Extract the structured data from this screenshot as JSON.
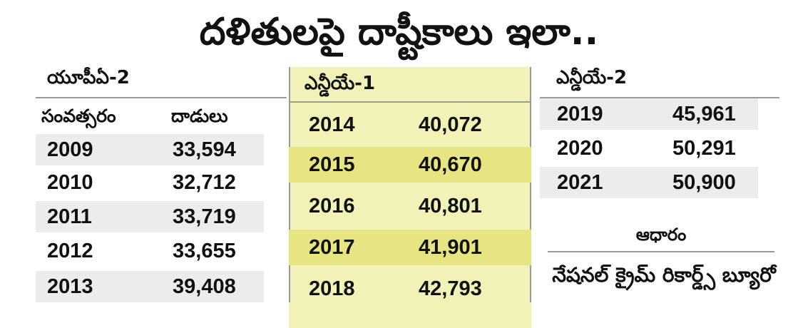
{
  "title": "దళితులపై దాష్టీకాలు ఇలా..",
  "upa2": {
    "label": "యూపీఏ-2",
    "header_year": "సంవత్సరం",
    "header_count": "దాడులు",
    "rows": [
      {
        "year": "2009",
        "count": "33,594"
      },
      {
        "year": "2010",
        "count": "32,712"
      },
      {
        "year": "2011",
        "count": "33,719"
      },
      {
        "year": "2012",
        "count": "33,655"
      },
      {
        "year": "2013",
        "count": "39,408"
      }
    ]
  },
  "nda1": {
    "label": "ఎన్డీయే-1",
    "rows": [
      {
        "year": "2014",
        "count": "40,072"
      },
      {
        "year": "2015",
        "count": "40,670"
      },
      {
        "year": "2016",
        "count": "40,801"
      },
      {
        "year": "2017",
        "count": "41,901"
      },
      {
        "year": "2018",
        "count": "42,793"
      }
    ]
  },
  "nda2": {
    "label": "ఎన్డీయే-2",
    "rows": [
      {
        "year": "2019",
        "count": "45,961"
      },
      {
        "year": "2020",
        "count": "50,291"
      },
      {
        "year": "2021",
        "count": "50,900"
      }
    ]
  },
  "source": {
    "label": "ఆధారం",
    "text": "నేషనల్ క్రైమ్ రికార్డ్స్ బ్యూరో"
  },
  "colors": {
    "highlight": "#f2f1b8",
    "highlight_alt": "#e7e581",
    "row_tint": "#ececec"
  }
}
